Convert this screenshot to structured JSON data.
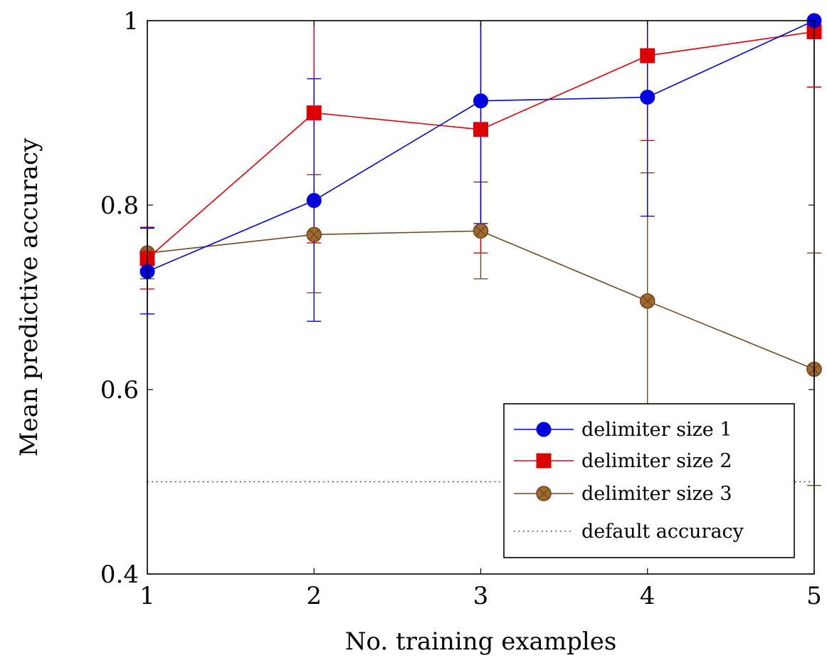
{
  "chart_data": {
    "type": "line",
    "xlabel": "No. training examples",
    "ylabel": "Mean predictive accuracy",
    "x": [
      1,
      2,
      3,
      4,
      5
    ],
    "xlim": [
      1,
      5
    ],
    "ylim": [
      0.4,
      1
    ],
    "xticks": [
      "1",
      "2",
      "3",
      "4",
      "5"
    ],
    "yticks": [
      "0.4",
      "0.6",
      "0.8",
      "1"
    ],
    "ytick_values": [
      0.4,
      0.6,
      0.8,
      1.0
    ],
    "grid": false,
    "legend_position": "bottom-right",
    "series": [
      {
        "name": "delimiter size 1",
        "color": "#0000dd",
        "marker": "circle",
        "values": [
          0.728,
          0.805,
          0.913,
          0.917,
          1.0
        ],
        "err_low": [
          0.682,
          0.674,
          0.78,
          0.788,
          1.0
        ],
        "err_high": [
          0.775,
          0.937,
          1.0,
          1.0,
          1.0
        ]
      },
      {
        "name": "delimiter size 2",
        "color": "#dd0000",
        "marker": "square",
        "values": [
          0.742,
          0.9,
          0.882,
          0.962,
          0.988
        ],
        "err_low": [
          0.709,
          0.759,
          0.748,
          0.87,
          0.928
        ],
        "err_high": [
          0.776,
          1.0,
          1.0,
          1.0,
          1.0
        ]
      },
      {
        "name": "delimiter size 3",
        "color": "#6e4a1f",
        "fill": "#a0692e",
        "marker": "otimes",
        "values": [
          0.748,
          0.768,
          0.772,
          0.696,
          0.622
        ],
        "err_low": [
          0.72,
          0.705,
          0.72,
          0.56,
          0.496
        ],
        "err_high": [
          0.775,
          0.833,
          0.825,
          0.835,
          0.748
        ]
      }
    ],
    "reference_line": {
      "name": "default accuracy",
      "y": 0.5,
      "style": "dotted",
      "color": "#000000"
    }
  }
}
